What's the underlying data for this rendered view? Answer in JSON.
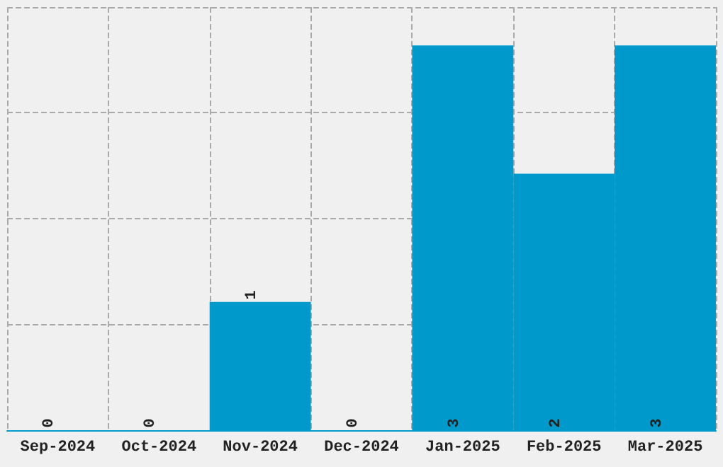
{
  "chart_data": {
    "type": "bar",
    "categories": [
      "Sep-2024",
      "Oct-2024",
      "Nov-2024",
      "Dec-2024",
      "Jan-2025",
      "Feb-2025",
      "Mar-2025"
    ],
    "values": [
      0,
      0,
      1,
      0,
      3,
      2,
      3
    ],
    "color": "#0099cc",
    "data_labels": true,
    "ylim": [
      0,
      3.3
    ],
    "yticks": [
      {
        "value": 0,
        "label": null
      },
      {
        "value": 0.825,
        "label": null
      },
      {
        "value": 1.65,
        "label": null
      },
      {
        "value": 2.475,
        "label": null
      },
      {
        "value": 3.3,
        "label": null
      }
    ],
    "grid": true,
    "tick_labels": "x"
  }
}
